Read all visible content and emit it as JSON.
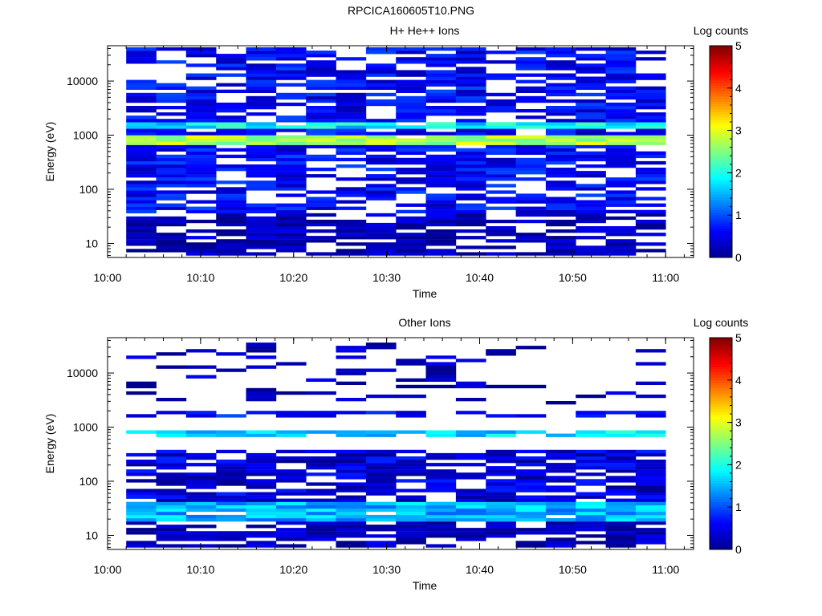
{
  "figure": {
    "title": "RPCICA160605T10.PNG"
  },
  "colors": {
    "colormap": [
      "#00008f",
      "#0000ff",
      "#0080ff",
      "#00ffff",
      "#80ff80",
      "#ffff00",
      "#ff8000",
      "#ff0000",
      "#800000"
    ],
    "background": "#ffffff",
    "axis": "#000000"
  },
  "chart_data": [
    {
      "type": "heatmap",
      "title": "H+ He++ Ions",
      "xlabel": "Time",
      "ylabel": "Energy (eV)",
      "yscale": "log",
      "xlim": [
        "10:00",
        "11:03"
      ],
      "ylim": [
        5.5,
        45000
      ],
      "xticks": [
        "10:00",
        "10:10",
        "10:20",
        "10:30",
        "10:40",
        "10:50",
        "11:00"
      ],
      "yticks": [
        "10",
        "100",
        "1000",
        "10000"
      ],
      "colorbar": {
        "label": "Log counts",
        "min": 0,
        "max": 5,
        "ticks": [
          "0",
          "1",
          "2",
          "3",
          "4",
          "5"
        ]
      },
      "time_range": [
        "10:02",
        "11:00"
      ],
      "columns": 18,
      "bands": [
        {
          "energy_ev": [
            35,
            40000
          ],
          "log_counts": 0.6,
          "note_level": "low"
        },
        {
          "energy_ev": [
            1400,
            1800
          ],
          "log_counts": 1.8
        },
        {
          "energy_ev": [
            650,
            950
          ],
          "log_counts": 2.7
        },
        {
          "energy_ev": [
            11,
            35
          ],
          "log_counts": 0.2
        },
        {
          "energy_ev": [
            6,
            11
          ],
          "log_counts": 0.1
        }
      ],
      "peak": {
        "energy_ev": 780,
        "log_counts": 2.9
      }
    },
    {
      "type": "heatmap",
      "title": "Other Ions",
      "xlabel": "Time",
      "ylabel": "Energy (eV)",
      "yscale": "log",
      "xlim": [
        "10:00",
        "11:03"
      ],
      "ylim": [
        5.5,
        45000
      ],
      "xticks": [
        "10:00",
        "10:10",
        "10:20",
        "10:30",
        "10:40",
        "10:50",
        "11:00"
      ],
      "yticks": [
        "10",
        "100",
        "1000",
        "10000"
      ],
      "colorbar": {
        "label": "Log counts",
        "min": 0,
        "max": 5,
        "ticks": [
          "0",
          "1",
          "2",
          "3",
          "4",
          "5"
        ]
      },
      "time_range": [
        "10:02",
        "11:00"
      ],
      "columns": 18,
      "bands": [
        {
          "energy_ev": [
            40,
            400
          ],
          "log_counts": 0.4
        },
        {
          "energy_ev": [
            700,
            900
          ],
          "log_counts": 1.7
        },
        {
          "energy_ev": [
            1500,
            2000
          ],
          "log_counts": 0.7
        },
        {
          "energy_ev": [
            18,
            40
          ],
          "log_counts": 1.5
        },
        {
          "energy_ev": [
            6,
            18
          ],
          "log_counts": 0.2
        },
        {
          "energy_ev": [
            2500,
            40000
          ],
          "log_counts": 0.2,
          "sparse": true
        }
      ],
      "peak": {
        "energy_ev": 800,
        "log_counts": 2.0
      }
    }
  ]
}
